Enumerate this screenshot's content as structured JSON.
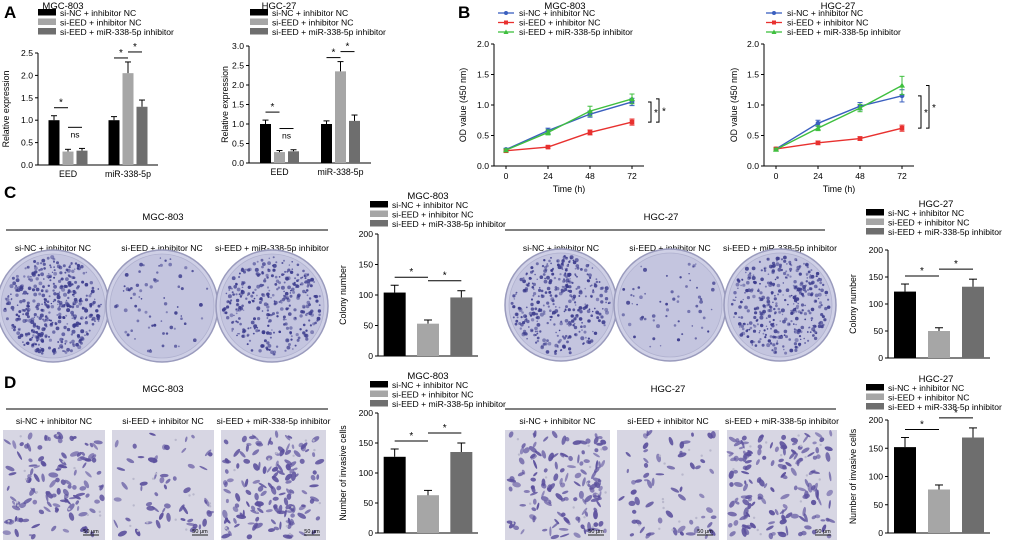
{
  "colors": {
    "black": "#000000",
    "light_gray": "#a6a6a6",
    "dark_gray": "#6e6e6e",
    "line_blue": "#3a5fbf",
    "line_red": "#e8312f",
    "line_green": "#3fbf3f",
    "dish_purple": "#3a3a8c",
    "cell_stain": "#5a4f9c"
  },
  "panels": {
    "A": "A",
    "B": "B",
    "C": "C",
    "D": "D"
  },
  "legend_groups": [
    "si-NC + inhibitor NC",
    "si-EED + inhibitor NC",
    "si-EED + miR-338-5p inhibitor"
  ],
  "image_labels": {
    "mgc": "MGC-803",
    "hgc": "HGC-27",
    "scale_bar": "50 μm"
  },
  "chart_data": [
    {
      "id": "A1",
      "type": "bar",
      "title": "MGC-803",
      "ylabel": "Relative expression",
      "xlabel": "",
      "ylim": [
        0,
        2.5
      ],
      "yticks": [
        0,
        0.5,
        1.0,
        1.5,
        2.0,
        2.5
      ],
      "categories": [
        "EED",
        "miR-338-5p"
      ],
      "series": [
        {
          "name": "si-NC + inhibitor NC",
          "values": [
            1.0,
            1.0
          ],
          "errors": [
            0.1,
            0.08
          ]
        },
        {
          "name": "si-EED + inhibitor NC",
          "values": [
            0.3,
            2.05
          ],
          "errors": [
            0.05,
            0.25
          ]
        },
        {
          "name": "si-EED + miR-338-5p inhibitor",
          "values": [
            0.32,
            1.3
          ],
          "errors": [
            0.05,
            0.15
          ]
        }
      ],
      "annotations": [
        "*",
        "ns",
        "*",
        "*"
      ]
    },
    {
      "id": "A2",
      "type": "bar",
      "title": "HGC-27",
      "ylabel": "Relative expression",
      "xlabel": "",
      "ylim": [
        0,
        3.0
      ],
      "yticks": [
        0,
        0.5,
        1.0,
        1.5,
        2.0,
        2.5,
        3.0
      ],
      "categories": [
        "EED",
        "miR-338-5p"
      ],
      "series": [
        {
          "name": "si-NC + inhibitor NC",
          "values": [
            1.0,
            1.0
          ],
          "errors": [
            0.1,
            0.08
          ]
        },
        {
          "name": "si-EED + inhibitor NC",
          "values": [
            0.28,
            2.35
          ],
          "errors": [
            0.04,
            0.25
          ]
        },
        {
          "name": "si-EED + miR-338-5p inhibitor",
          "values": [
            0.3,
            1.08
          ],
          "errors": [
            0.04,
            0.15
          ]
        }
      ],
      "annotations": [
        "*",
        "ns",
        "*",
        "*"
      ]
    },
    {
      "id": "B1",
      "type": "line",
      "title": "MGC-803",
      "xlabel": "Time (h)",
      "ylabel": "OD value (450 nm)",
      "x": [
        0,
        24,
        48,
        72
      ],
      "ylim": [
        0,
        2.0
      ],
      "yticks": [
        0,
        0.5,
        1.0,
        1.5,
        2.0
      ],
      "series": [
        {
          "name": "si-NC + inhibitor NC",
          "values": [
            0.27,
            0.58,
            0.85,
            1.05
          ],
          "errors": [
            0.02,
            0.04,
            0.05,
            0.06
          ]
        },
        {
          "name": "si-EED + inhibitor NC",
          "values": [
            0.25,
            0.31,
            0.55,
            0.72
          ],
          "errors": [
            0.02,
            0.02,
            0.04,
            0.05
          ]
        },
        {
          "name": "si-EED + miR-338-5p inhibitor",
          "values": [
            0.26,
            0.55,
            0.9,
            1.1
          ],
          "errors": [
            0.02,
            0.04,
            0.08,
            0.08
          ]
        }
      ],
      "annotations": [
        "*",
        "*"
      ]
    },
    {
      "id": "B2",
      "type": "line",
      "title": "HGC-27",
      "xlabel": "Time (h)",
      "ylabel": "OD value (450 nm)",
      "x": [
        0,
        24,
        48,
        72
      ],
      "ylim": [
        0,
        2.0
      ],
      "yticks": [
        0,
        0.5,
        1.0,
        1.5,
        2.0
      ],
      "series": [
        {
          "name": "si-NC + inhibitor NC",
          "values": [
            0.28,
            0.7,
            0.98,
            1.15
          ],
          "errors": [
            0.02,
            0.05,
            0.06,
            0.1
          ]
        },
        {
          "name": "si-EED + inhibitor NC",
          "values": [
            0.28,
            0.38,
            0.45,
            0.62
          ],
          "errors": [
            0.02,
            0.03,
            0.03,
            0.05
          ]
        },
        {
          "name": "si-EED + miR-338-5p inhibitor",
          "values": [
            0.27,
            0.62,
            0.95,
            1.32
          ],
          "errors": [
            0.02,
            0.04,
            0.06,
            0.15
          ]
        }
      ],
      "annotations": [
        "*",
        "*"
      ]
    },
    {
      "id": "C1",
      "type": "bar",
      "title": "MGC-803",
      "ylabel": "Colony number",
      "xlabel": "",
      "ylim": [
        0,
        200
      ],
      "yticks": [
        0,
        50,
        100,
        150,
        200
      ],
      "categories": [
        "si-NC + inhibitor NC",
        "si-EED + inhibitor NC",
        "si-EED + miR-338-5p inhibitor"
      ],
      "values": [
        104,
        53,
        96
      ],
      "errors": [
        12,
        6,
        11
      ],
      "annotations": [
        "*",
        "*"
      ]
    },
    {
      "id": "C2",
      "type": "bar",
      "title": "HGC-27",
      "ylabel": "Colony number",
      "xlabel": "",
      "ylim": [
        0,
        200
      ],
      "yticks": [
        0,
        50,
        100,
        150,
        200
      ],
      "categories": [
        "si-NC + inhibitor NC",
        "si-EED + inhibitor NC",
        "si-EED + miR-338-5p inhibitor"
      ],
      "values": [
        123,
        50,
        132
      ],
      "errors": [
        14,
        6,
        14
      ],
      "annotations": [
        "*",
        "*"
      ]
    },
    {
      "id": "D1",
      "type": "bar",
      "title": "MGC-803",
      "ylabel": "Number of invasive cells",
      "xlabel": "",
      "ylim": [
        0,
        200
      ],
      "yticks": [
        0,
        50,
        100,
        150,
        200
      ],
      "categories": [
        "si-NC + inhibitor NC",
        "si-EED + inhibitor NC",
        "si-EED + miR-338-5p inhibitor"
      ],
      "values": [
        127,
        63,
        135
      ],
      "errors": [
        13,
        8,
        15
      ],
      "annotations": [
        "*",
        "*"
      ]
    },
    {
      "id": "D2",
      "type": "bar",
      "title": "HGC-27",
      "ylabel": "Number of invasive cells",
      "xlabel": "",
      "ylim": [
        0,
        200
      ],
      "yticks": [
        0,
        50,
        100,
        150,
        200
      ],
      "categories": [
        "si-NC + inhibitor NC",
        "si-EED + inhibitor NC",
        "si-EED + miR-338-5p inhibitor"
      ],
      "values": [
        152,
        77,
        169
      ],
      "errors": [
        17,
        8,
        17
      ],
      "annotations": [
        "*",
        "*"
      ]
    }
  ]
}
